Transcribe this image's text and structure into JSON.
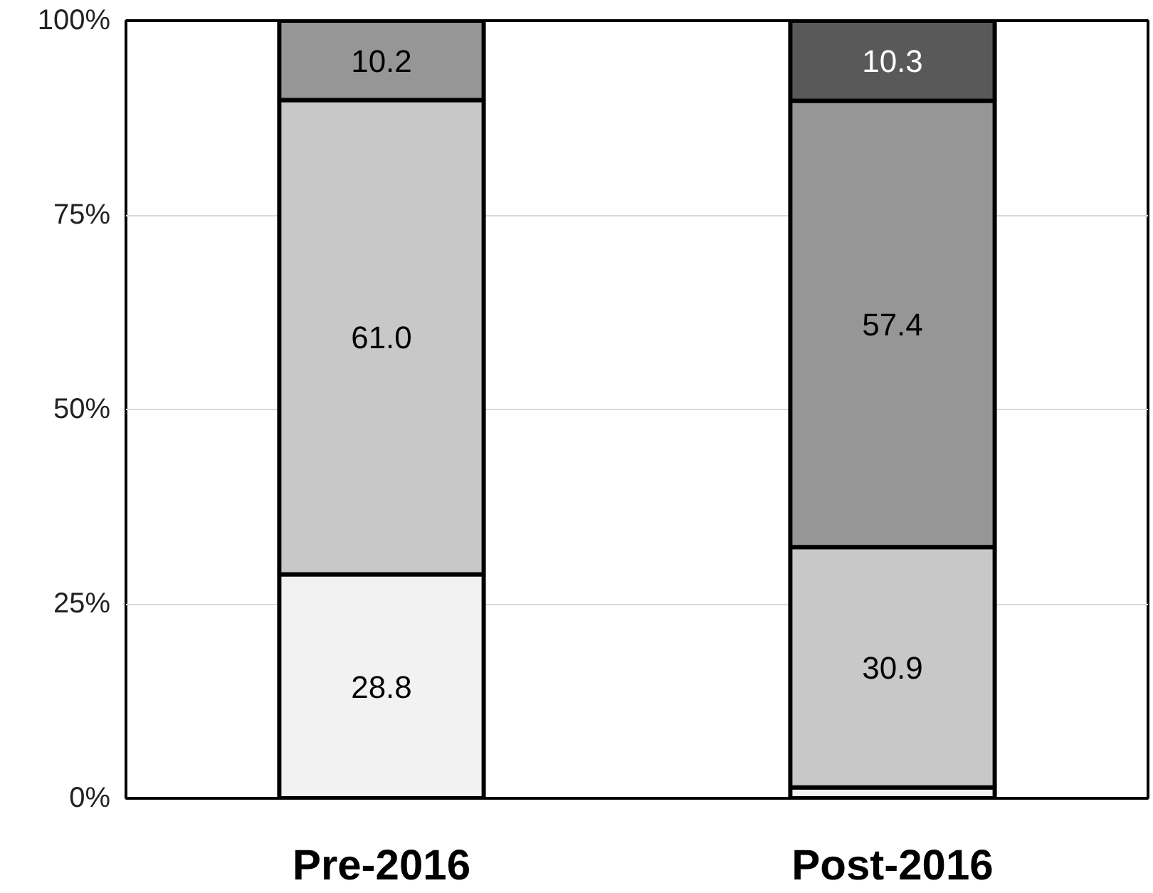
{
  "chart_data": {
    "type": "bar",
    "stacked": true,
    "categories": [
      "Pre-2016",
      "Post-2016"
    ],
    "series": [
      {
        "color": "#f2f2f2",
        "values": [
          28.8,
          1.4
        ],
        "value_labels": [
          "28.8",
          null
        ]
      },
      {
        "color": "#c8c8c8",
        "values": [
          61.0,
          30.9
        ],
        "value_labels": [
          "61.0",
          "30.9"
        ]
      },
      {
        "color": "#969696",
        "values": [
          10.2,
          57.4
        ],
        "value_labels": [
          "10.2",
          "57.4"
        ]
      },
      {
        "color": "#595959",
        "values": [
          null,
          10.3
        ],
        "value_labels": [
          null,
          "10.3"
        ]
      }
    ],
    "ylim": [
      0,
      100
    ],
    "yticks": [
      {
        "value": 0,
        "label": "0%"
      },
      {
        "value": 25,
        "label": "25%"
      },
      {
        "value": 50,
        "label": "50%"
      },
      {
        "value": 75,
        "label": "75%"
      },
      {
        "value": 100,
        "label": "100%"
      }
    ],
    "grid": "y"
  }
}
